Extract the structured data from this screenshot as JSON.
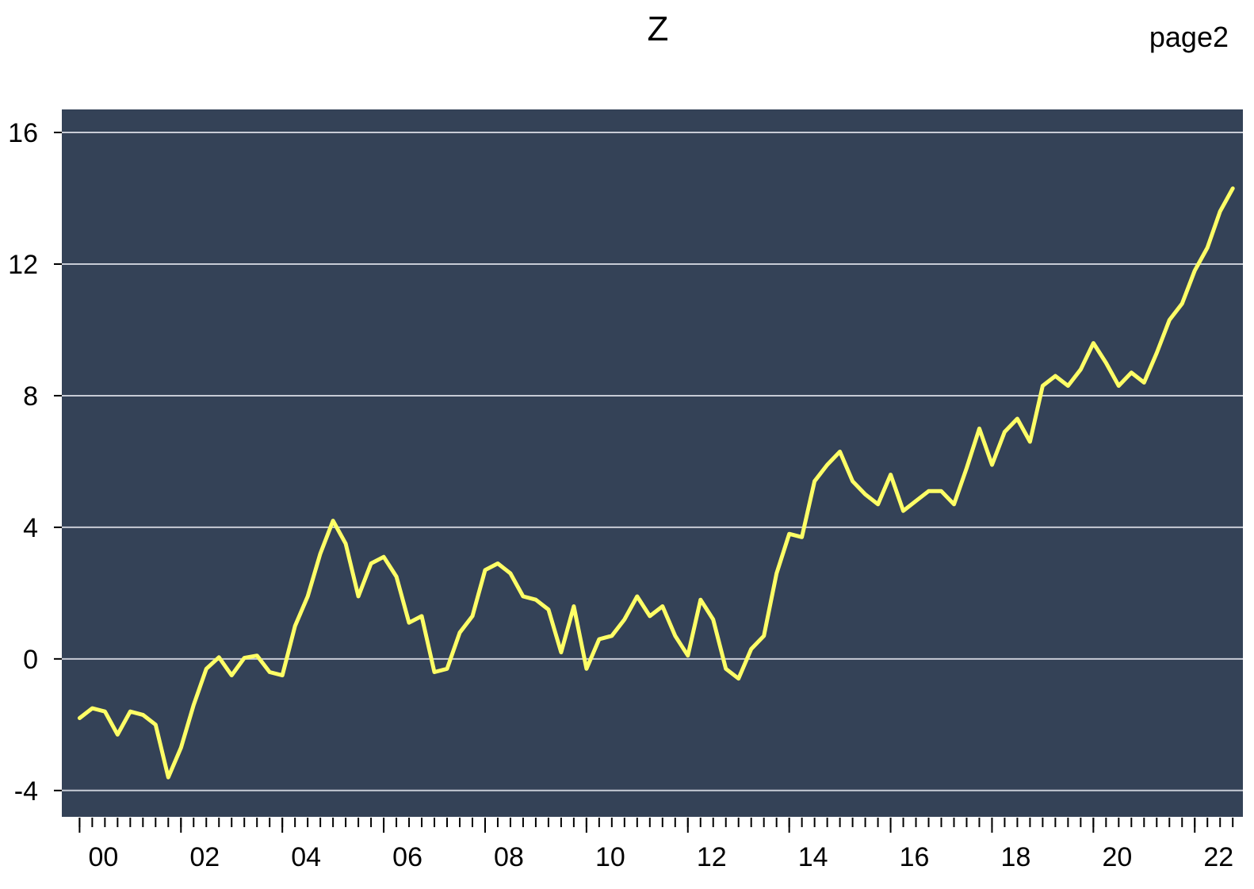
{
  "page_label": "page2",
  "chart_data": {
    "type": "line",
    "title": "Z",
    "xlabel": "",
    "ylabel": "",
    "ylim": [
      -4.8,
      16.7
    ],
    "xlim": [
      1999.65,
      2022.95
    ],
    "yticks": [
      -4,
      0,
      4,
      8,
      12,
      16
    ],
    "xticks": [
      2000,
      2002,
      2004,
      2006,
      2008,
      2010,
      2012,
      2014,
      2016,
      2018,
      2020,
      2022
    ],
    "xtick_labels": [
      "00",
      "02",
      "04",
      "06",
      "08",
      "10",
      "12",
      "14",
      "16",
      "18",
      "20",
      "22"
    ],
    "minor_tick_step": 0.25,
    "grid": "horizontal",
    "legend": "none",
    "colors": {
      "plot_background": "#344257",
      "line": "#ffff66",
      "grid": "#c8ccd6",
      "axis": "#000000"
    },
    "x_start": "2000Q1",
    "frequency": "quarterly",
    "series": [
      {
        "values": [
          -1.8,
          -1.5,
          -1.6,
          -2.3,
          -1.6,
          -1.7,
          -2.0,
          -3.6,
          -2.7,
          -1.4,
          -0.3,
          0.05,
          -0.5,
          0.03,
          0.1,
          -0.4,
          -0.5,
          1.0,
          1.9,
          3.2,
          4.2,
          3.5,
          1.9,
          2.9,
          3.1,
          2.5,
          1.1,
          1.3,
          -0.4,
          -0.3,
          0.8,
          1.3,
          2.7,
          2.9,
          2.6,
          1.9,
          1.8,
          1.5,
          0.2,
          1.6,
          -0.3,
          0.6,
          0.7,
          1.2,
          1.9,
          1.3,
          1.6,
          0.7,
          0.1,
          1.8,
          1.2,
          -0.3,
          -0.6,
          0.3,
          0.7,
          2.6,
          3.8,
          3.7,
          5.4,
          5.9,
          6.3,
          5.4,
          5.0,
          4.7,
          5.6,
          4.5,
          4.8,
          5.1,
          5.1,
          4.7,
          5.8,
          7.0,
          5.9,
          6.9,
          7.3,
          6.6,
          8.3,
          8.6,
          8.3,
          8.8,
          9.6,
          9.0,
          8.3,
          8.7,
          8.4,
          9.3,
          10.3,
          10.8,
          11.8,
          12.5,
          13.6,
          14.3
        ]
      }
    ]
  }
}
